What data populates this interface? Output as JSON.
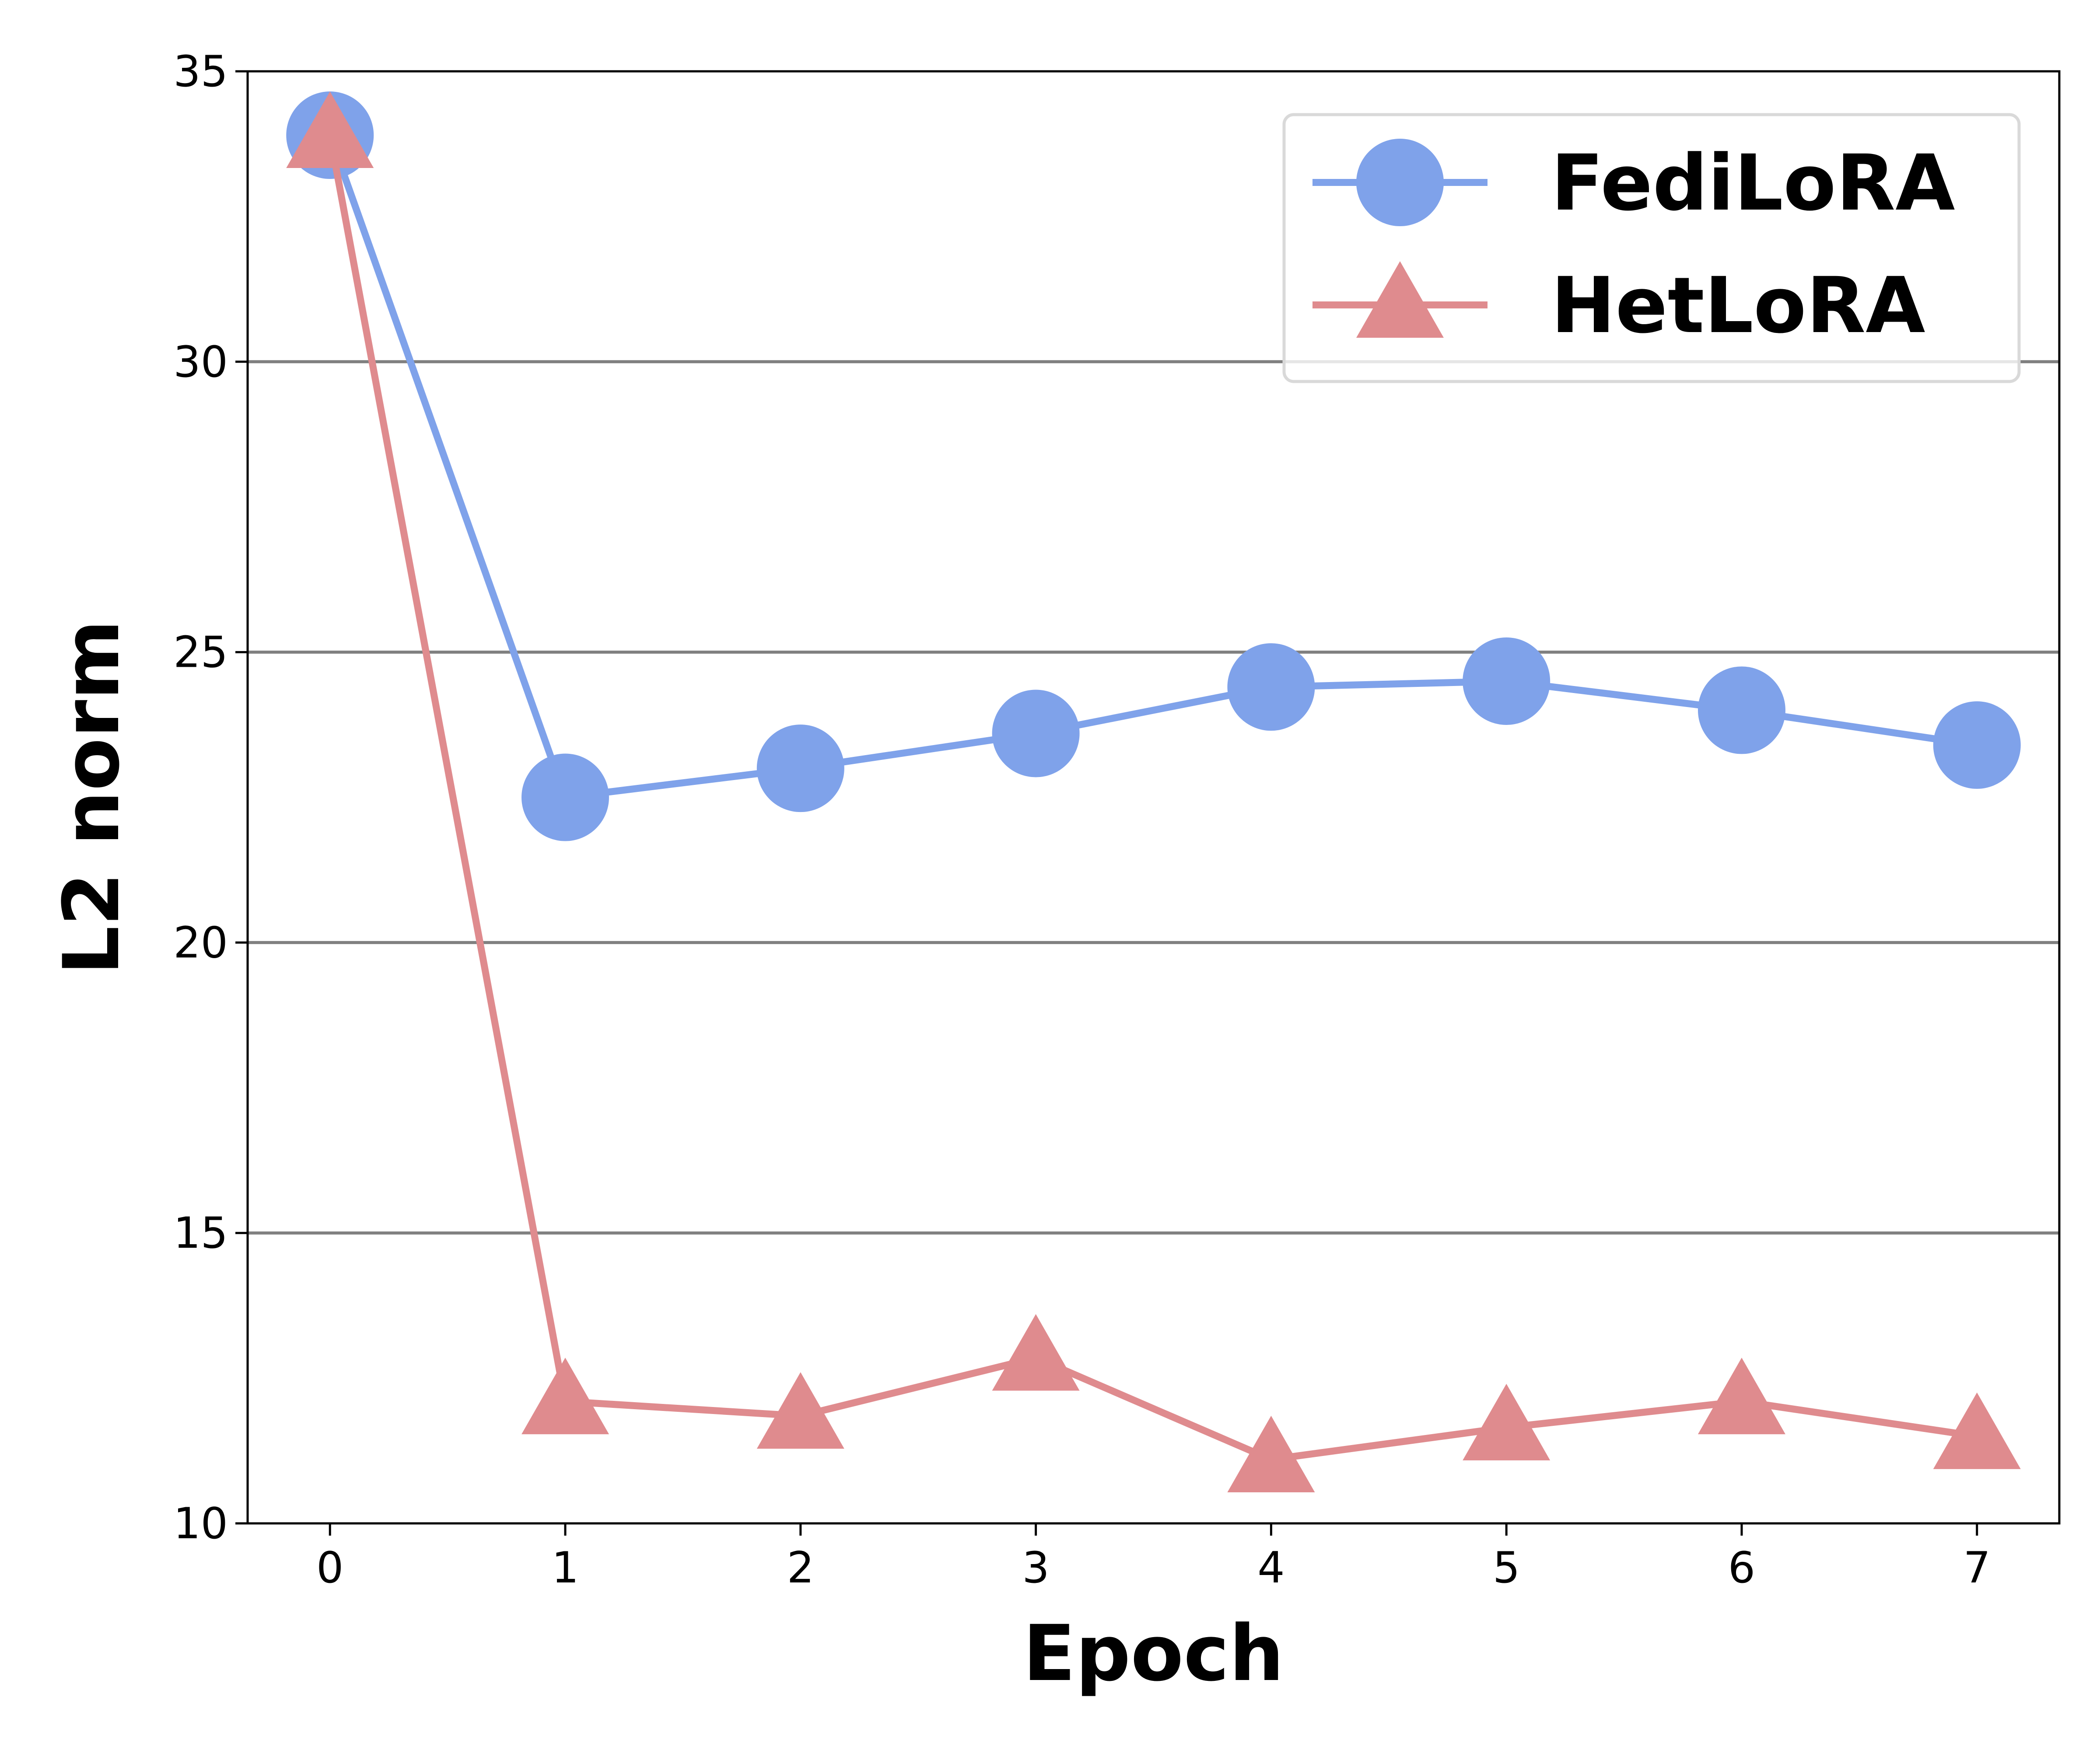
{
  "chart_data": {
    "type": "line",
    "title": "",
    "xlabel": "Epoch",
    "ylabel": "L2 norm",
    "x": [
      0,
      1,
      2,
      3,
      4,
      5,
      6,
      7
    ],
    "xlim": [
      -0.35,
      7.35
    ],
    "ylim": [
      10,
      35
    ],
    "x_ticks": [
      0,
      1,
      2,
      3,
      4,
      5,
      6,
      7
    ],
    "y_ticks": [
      10,
      15,
      20,
      25,
      30,
      35
    ],
    "grid": "horizontal",
    "legend_position": "top-right",
    "series": [
      {
        "name": "FediLoRA",
        "color": "#7fa2ea",
        "marker": "circle",
        "values": [
          33.9,
          22.5,
          23.0,
          23.6,
          24.4,
          24.5,
          24.0,
          23.4
        ]
      },
      {
        "name": "HetLoRA",
        "color": "#df8b8e",
        "marker": "triangle",
        "values": [
          33.9,
          12.1,
          11.85,
          12.85,
          11.1,
          11.65,
          12.1,
          11.5
        ]
      }
    ]
  }
}
